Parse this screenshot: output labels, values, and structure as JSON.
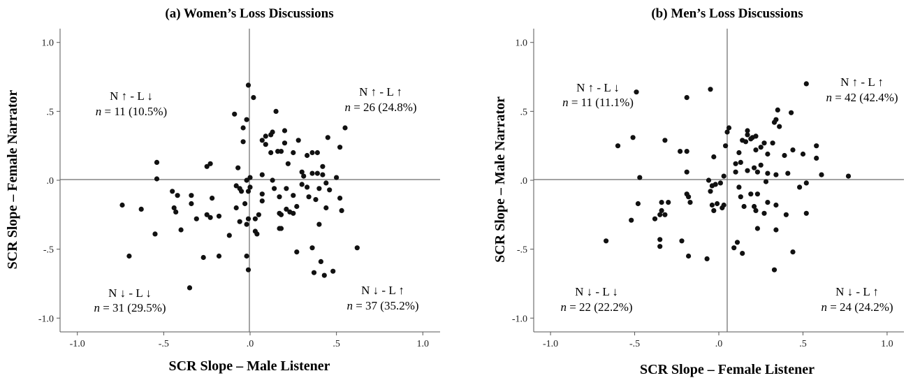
{
  "chart_data": [
    {
      "type": "scatter",
      "title": "(a)  Women’s Loss Discussions",
      "xlabel": "SCR Slope – Male Listener",
      "ylabel": "SCR Slope – Female Narrator",
      "xlim": [
        -1.1,
        1.1
      ],
      "ylim": [
        -1.1,
        1.1
      ],
      "xticks": [
        "-1.0",
        "-.5",
        ".0",
        ".5",
        "1.0"
      ],
      "yticks": [
        "1.0",
        ".5",
        ".0",
        "-.5",
        "-1.0"
      ],
      "grid": false,
      "reference_lines": {
        "x": 0,
        "y": 0
      },
      "quadrant_labels": [
        {
          "quadrant": "top-left",
          "heading": "N ↑ - L ↓",
          "count": "n = 11 (10.5%)"
        },
        {
          "quadrant": "top-right",
          "heading": "N ↑ - L ↑",
          "count": "n = 26 (24.8%)"
        },
        {
          "quadrant": "bottom-left",
          "heading": "N ↓ - L ↓",
          "count": "n = 31 (29.5%)"
        },
        {
          "quadrant": "bottom-right",
          "heading": "N ↓ - L ↑",
          "count": "n = 37 (35.2%)"
        }
      ],
      "points": [
        [
          -0.01,
          0.69
        ],
        [
          0.02,
          0.6
        ],
        [
          -0.09,
          0.48
        ],
        [
          -0.02,
          0.44
        ],
        [
          -0.04,
          0.38
        ],
        [
          0.15,
          0.5
        ],
        [
          0.55,
          0.38
        ],
        [
          0.45,
          0.31
        ],
        [
          0.52,
          0.24
        ],
        [
          0.36,
          0.2
        ],
        [
          0.39,
          0.2
        ],
        [
          0.33,
          0.18
        ],
        [
          0.13,
          0.35
        ],
        [
          0.09,
          0.32
        ],
        [
          0.12,
          0.33
        ],
        [
          0.2,
          0.36
        ],
        [
          0.28,
          0.29
        ],
        [
          -0.04,
          0.28
        ],
        [
          0.07,
          0.29
        ],
        [
          0.09,
          0.26
        ],
        [
          0.16,
          0.21
        ],
        [
          0.18,
          0.21
        ],
        [
          0.2,
          0.27
        ],
        [
          0.12,
          0.2
        ],
        [
          0.25,
          0.2
        ],
        [
          0.22,
          0.12
        ],
        [
          -0.25,
          0.1
        ],
        [
          -0.23,
          0.12
        ],
        [
          -0.54,
          0.13
        ],
        [
          -0.07,
          0.09
        ],
        [
          0.3,
          0.06
        ],
        [
          0.36,
          0.05
        ],
        [
          0.39,
          0.05
        ],
        [
          0.42,
          0.1
        ],
        [
          0.31,
          0.03
        ],
        [
          0.42,
          0.04
        ],
        [
          0.07,
          0.04
        ],
        [
          0.13,
          0.0
        ],
        [
          -0.02,
          0.0
        ],
        [
          0.0,
          0.02
        ],
        [
          0.5,
          0.02
        ],
        [
          -0.54,
          0.01
        ],
        [
          0.3,
          -0.03
        ],
        [
          0.44,
          -0.02
        ],
        [
          0.33,
          -0.05
        ],
        [
          0.4,
          -0.06
        ],
        [
          0.46,
          -0.07
        ],
        [
          0.14,
          -0.06
        ],
        [
          -0.08,
          -0.04
        ],
        [
          -0.06,
          -0.06
        ],
        [
          -0.05,
          -0.08
        ],
        [
          0.0,
          -0.05
        ],
        [
          -0.01,
          -0.08
        ],
        [
          0.07,
          -0.1
        ],
        [
          0.21,
          -0.06
        ],
        [
          -0.45,
          -0.08
        ],
        [
          -0.42,
          -0.11
        ],
        [
          -0.34,
          -0.11
        ],
        [
          -0.22,
          -0.13
        ],
        [
          0.52,
          -0.13
        ],
        [
          0.07,
          -0.15
        ],
        [
          0.17,
          -0.12
        ],
        [
          0.25,
          -0.11
        ],
        [
          0.34,
          -0.12
        ],
        [
          0.38,
          -0.14
        ],
        [
          -0.44,
          -0.2
        ],
        [
          -0.43,
          -0.23
        ],
        [
          -0.34,
          -0.17
        ],
        [
          -0.25,
          -0.25
        ],
        [
          -0.23,
          -0.27
        ],
        [
          -0.31,
          -0.28
        ],
        [
          -0.18,
          -0.26
        ],
        [
          -0.08,
          -0.2
        ],
        [
          -0.03,
          -0.17
        ],
        [
          0.05,
          -0.25
        ],
        [
          0.03,
          -0.28
        ],
        [
          0.17,
          -0.24
        ],
        [
          0.18,
          -0.25
        ],
        [
          0.21,
          -0.21
        ],
        [
          0.23,
          -0.23
        ],
        [
          0.25,
          -0.24
        ],
        [
          0.27,
          -0.19
        ],
        [
          0.44,
          -0.2
        ],
        [
          0.53,
          -0.22
        ],
        [
          -0.74,
          -0.18
        ],
        [
          -0.63,
          -0.21
        ],
        [
          -0.4,
          -0.36
        ],
        [
          -0.55,
          -0.39
        ],
        [
          -0.12,
          -0.4
        ],
        [
          -0.06,
          -0.3
        ],
        [
          -0.02,
          -0.32
        ],
        [
          -0.01,
          -0.28
        ],
        [
          0.03,
          -0.37
        ],
        [
          0.04,
          -0.39
        ],
        [
          0.17,
          -0.35
        ],
        [
          0.18,
          -0.35
        ],
        [
          0.4,
          -0.32
        ],
        [
          0.36,
          -0.49
        ],
        [
          0.27,
          -0.52
        ],
        [
          -0.7,
          -0.55
        ],
        [
          -0.27,
          -0.56
        ],
        [
          -0.18,
          -0.55
        ],
        [
          -0.02,
          -0.55
        ],
        [
          0.37,
          -0.67
        ],
        [
          0.41,
          -0.59
        ],
        [
          0.43,
          -0.69
        ],
        [
          0.48,
          -0.66
        ],
        [
          0.62,
          -0.49
        ],
        [
          -0.01,
          -0.65
        ],
        [
          -0.35,
          -0.78
        ]
      ]
    },
    {
      "type": "scatter",
      "title": "(b)  Men’s Loss Discussions",
      "xlabel": "SCR Slope – Female Listener",
      "ylabel": "SCR Slope – Male Narrator",
      "xlim": [
        -1.1,
        1.1
      ],
      "ylim": [
        -1.1,
        1.1
      ],
      "xticks": [
        "-1.0",
        "-.5",
        ".0",
        ".5",
        "1.0"
      ],
      "yticks": [
        "1.0",
        ".5",
        ".0",
        "-.5",
        "-1.0"
      ],
      "grid": false,
      "reference_lines": {
        "x": 0,
        "y": 0
      },
      "quadrant_labels": [
        {
          "quadrant": "top-left",
          "heading": "N ↑ - L ↓",
          "count": "n = 11 (11.1%)"
        },
        {
          "quadrant": "top-right",
          "heading": "N ↑ - L ↑",
          "count": "n = 42 (42.4%)"
        },
        {
          "quadrant": "bottom-left",
          "heading": "N ↓ - L ↓",
          "count": "n = 22 (22.2%)"
        },
        {
          "quadrant": "bottom-right",
          "heading": "N ↓ - L ↑",
          "count": "n = 24 (24.2%)"
        }
      ],
      "points": [
        [
          0.52,
          0.7
        ],
        [
          -0.05,
          0.66
        ],
        [
          -0.49,
          0.64
        ],
        [
          -0.19,
          0.6
        ],
        [
          0.35,
          0.51
        ],
        [
          0.43,
          0.49
        ],
        [
          0.34,
          0.44
        ],
        [
          0.33,
          0.42
        ],
        [
          0.36,
          0.39
        ],
        [
          -0.51,
          0.31
        ],
        [
          -0.6,
          0.25
        ],
        [
          -0.32,
          0.29
        ],
        [
          -0.23,
          0.21
        ],
        [
          -0.19,
          0.21
        ],
        [
          0.05,
          0.35
        ],
        [
          0.06,
          0.38
        ],
        [
          0.17,
          0.36
        ],
        [
          0.17,
          0.33
        ],
        [
          0.2,
          0.31
        ],
        [
          0.22,
          0.32
        ],
        [
          0.14,
          0.29
        ],
        [
          0.16,
          0.28
        ],
        [
          0.19,
          0.3
        ],
        [
          0.27,
          0.27
        ],
        [
          0.32,
          0.27
        ],
        [
          0.58,
          0.25
        ],
        [
          0.04,
          0.25
        ],
        [
          0.12,
          0.2
        ],
        [
          0.22,
          0.22
        ],
        [
          0.25,
          0.24
        ],
        [
          0.29,
          0.19
        ],
        [
          0.39,
          0.18
        ],
        [
          0.44,
          0.22
        ],
        [
          0.5,
          0.19
        ],
        [
          0.58,
          0.16
        ],
        [
          -0.03,
          0.17
        ],
        [
          0.1,
          0.12
        ],
        [
          0.13,
          0.13
        ],
        [
          0.21,
          0.09
        ],
        [
          0.25,
          0.11
        ],
        [
          0.1,
          0.06
        ],
        [
          0.17,
          0.07
        ],
        [
          0.23,
          0.06
        ],
        [
          0.29,
          0.05
        ],
        [
          0.34,
          0.04
        ],
        [
          0.41,
          0.05
        ],
        [
          0.61,
          0.04
        ],
        [
          0.77,
          0.03
        ],
        [
          -0.19,
          0.06
        ],
        [
          0.03,
          0.03
        ],
        [
          -0.47,
          0.02
        ],
        [
          -0.06,
          0.0
        ],
        [
          0.28,
          -0.01
        ],
        [
          0.52,
          -0.02
        ],
        [
          0.01,
          -0.02
        ],
        [
          -0.04,
          -0.04
        ],
        [
          -0.02,
          -0.03
        ],
        [
          0.12,
          -0.05
        ],
        [
          0.48,
          -0.05
        ],
        [
          -0.05,
          -0.08
        ],
        [
          0.19,
          -0.1
        ],
        [
          0.23,
          -0.1
        ],
        [
          -0.19,
          -0.1
        ],
        [
          -0.18,
          -0.12
        ],
        [
          0.13,
          -0.12
        ],
        [
          -0.17,
          -0.16
        ],
        [
          -0.34,
          -0.16
        ],
        [
          -0.3,
          -0.16
        ],
        [
          -0.04,
          -0.18
        ],
        [
          -0.01,
          -0.17
        ],
        [
          0.02,
          -0.2
        ],
        [
          0.03,
          -0.18
        ],
        [
          0.15,
          -0.19
        ],
        [
          0.21,
          -0.19
        ],
        [
          0.29,
          -0.16
        ],
        [
          0.34,
          -0.18
        ],
        [
          -0.48,
          -0.17
        ],
        [
          -0.34,
          -0.22
        ],
        [
          -0.32,
          -0.25
        ],
        [
          -0.35,
          -0.25
        ],
        [
          -0.03,
          -0.22
        ],
        [
          0.22,
          -0.22
        ],
        [
          0.27,
          -0.24
        ],
        [
          0.4,
          -0.25
        ],
        [
          0.52,
          -0.24
        ],
        [
          -0.38,
          -0.28
        ],
        [
          -0.52,
          -0.29
        ],
        [
          -0.22,
          -0.44
        ],
        [
          0.23,
          -0.35
        ],
        [
          0.34,
          -0.36
        ],
        [
          -0.35,
          -0.43
        ],
        [
          -0.35,
          -0.48
        ],
        [
          0.11,
          -0.45
        ],
        [
          0.09,
          -0.49
        ],
        [
          0.14,
          -0.53
        ],
        [
          -0.67,
          -0.44
        ],
        [
          -0.18,
          -0.55
        ],
        [
          -0.07,
          -0.57
        ],
        [
          0.44,
          -0.52
        ],
        [
          0.33,
          -0.65
        ]
      ]
    }
  ]
}
